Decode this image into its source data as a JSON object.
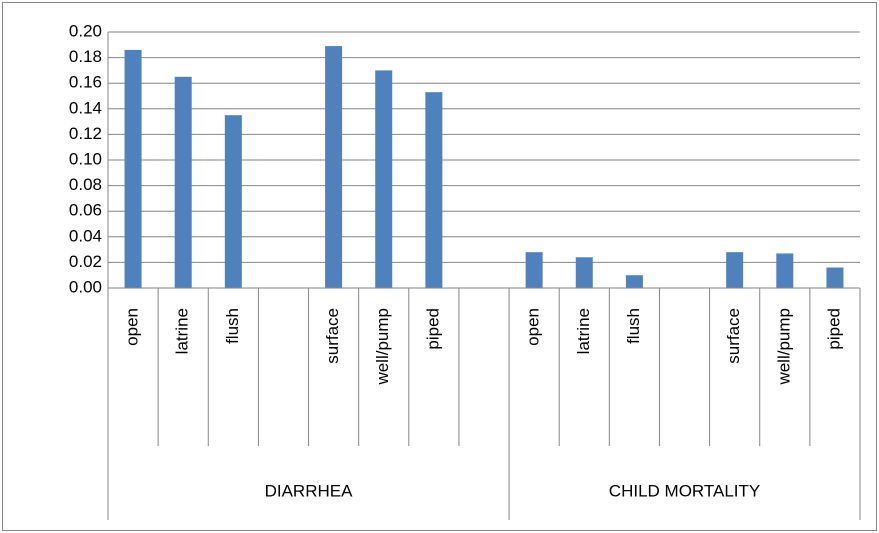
{
  "chart_data": {
    "type": "bar",
    "color": "#4f81bd",
    "grid": true,
    "ylim": [
      0,
      0.2
    ],
    "yticks": [
      {
        "value": 0,
        "label": "0.00"
      },
      {
        "value": 0.02,
        "label": "0.02"
      },
      {
        "value": 0.04,
        "label": "0.04"
      },
      {
        "value": 0.06,
        "label": "0.06"
      },
      {
        "value": 0.08,
        "label": "0.08"
      },
      {
        "value": 0.1,
        "label": "0.10"
      },
      {
        "value": 0.12,
        "label": "0.12"
      },
      {
        "value": 0.14,
        "label": "0.14"
      },
      {
        "value": 0.16,
        "label": "0.16"
      },
      {
        "value": 0.18,
        "label": "0.18"
      },
      {
        "value": 0.2,
        "label": "0.20"
      }
    ],
    "groups": [
      {
        "name": "DIARRHEA",
        "categories": [
          "open",
          "latrine",
          "flush",
          null,
          "surface",
          "well/pump",
          "piped",
          null
        ],
        "values": [
          0.186,
          0.165,
          0.135,
          null,
          0.189,
          0.17,
          0.153,
          null
        ]
      },
      {
        "name": "CHILD MORTALITY",
        "categories": [
          "open",
          "latrine",
          "flush",
          null,
          "surface",
          "well/pump",
          "piped"
        ],
        "values": [
          0.028,
          0.024,
          0.01,
          null,
          0.028,
          0.027,
          0.016
        ]
      }
    ]
  }
}
